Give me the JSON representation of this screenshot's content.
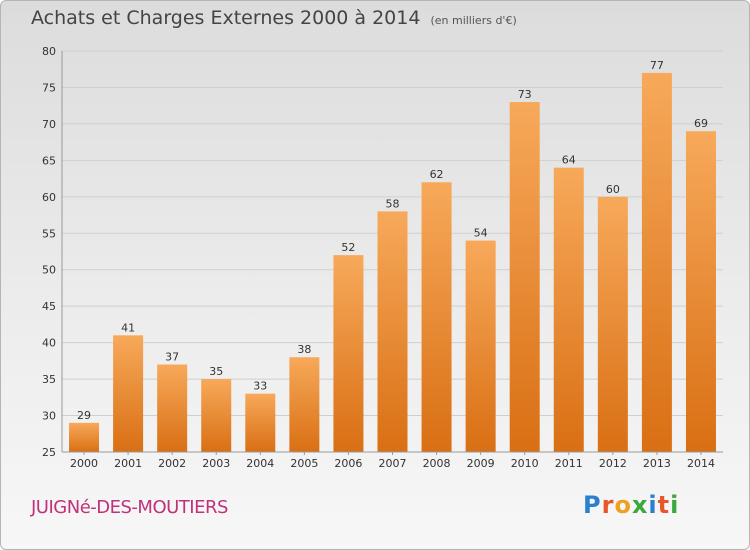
{
  "header": {
    "title": "Achats et Charges Externes 2000 à 2014",
    "subtitle": "(en milliers d'€)"
  },
  "footer": {
    "commune": "JUIGNé-DES-MOUTIERS",
    "logo_letters": [
      {
        "ch": "P",
        "color": "#2a7fd0"
      },
      {
        "ch": "r",
        "color": "#e8552c"
      },
      {
        "ch": "o",
        "color": "#f0a020"
      },
      {
        "ch": "x",
        "color": "#3aa83a"
      },
      {
        "ch": "i",
        "color": "#2a7fd0"
      },
      {
        "ch": "t",
        "color": "#e8552c"
      },
      {
        "ch": "i",
        "color": "#3aa83a"
      }
    ]
  },
  "colors": {
    "bar_top": "#f7a95a",
    "bar_bottom": "#d96f14",
    "grid": "#cfcfcf",
    "axis_text": "#333333"
  },
  "chart_data": {
    "type": "bar",
    "categories": [
      "2000",
      "2001",
      "2002",
      "2003",
      "2004",
      "2005",
      "2006",
      "2007",
      "2008",
      "2009",
      "2010",
      "2011",
      "2012",
      "2013",
      "2014"
    ],
    "values": [
      29,
      41,
      37,
      35,
      33,
      38,
      52,
      58,
      62,
      54,
      73,
      64,
      60,
      77,
      69
    ],
    "ylim": [
      25,
      80
    ],
    "yticks": [
      25,
      30,
      35,
      40,
      45,
      50,
      55,
      60,
      65,
      70,
      75,
      80
    ],
    "grid": true,
    "data_labels": true
  }
}
